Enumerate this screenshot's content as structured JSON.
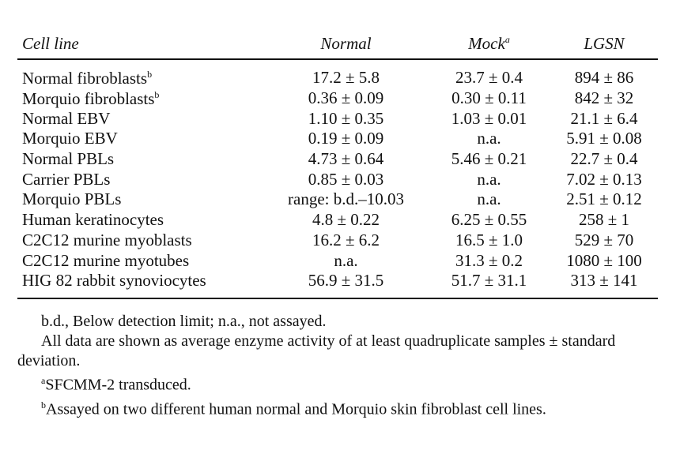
{
  "table": {
    "headers": {
      "cell_line": "Cell line",
      "normal": "Normal",
      "mock": "Mock",
      "mock_sup": "a",
      "lgsn": "LGSN"
    },
    "rows": [
      {
        "cell_line": "Normal fibroblasts",
        "sup": "b",
        "normal": "17.2 ± 5.8",
        "mock": "23.7 ± 0.4",
        "lgsn": "894 ± 86"
      },
      {
        "cell_line": "Morquio fibroblasts",
        "sup": "b",
        "normal": "0.36 ± 0.09",
        "mock": "0.30 ± 0.11",
        "lgsn": "842 ± 32"
      },
      {
        "cell_line": "Normal EBV",
        "sup": "",
        "normal": "1.10 ± 0.35",
        "mock": "1.03 ± 0.01",
        "lgsn": "21.1 ± 6.4"
      },
      {
        "cell_line": "Morquio EBV",
        "sup": "",
        "normal": "0.19 ± 0.09",
        "mock": "n.a.",
        "lgsn": "5.91 ± 0.08"
      },
      {
        "cell_line": "Normal PBLs",
        "sup": "",
        "normal": "4.73 ± 0.64",
        "mock": "5.46 ± 0.21",
        "lgsn": "22.7 ± 0.4"
      },
      {
        "cell_line": "Carrier PBLs",
        "sup": "",
        "normal": "0.85 ± 0.03",
        "mock": "n.a.",
        "lgsn": "7.02 ± 0.13"
      },
      {
        "cell_line": "Morquio PBLs",
        "sup": "",
        "normal": "range: b.d.–10.03",
        "mock": "n.a.",
        "lgsn": "2.51 ± 0.12"
      },
      {
        "cell_line": "Human keratinocytes",
        "sup": "",
        "normal": "4.8 ± 0.22",
        "mock": "6.25 ± 0.55",
        "lgsn": "258 ± 1"
      },
      {
        "cell_line": "C2C12 murine myoblasts",
        "sup": "",
        "normal": "16.2 ± 6.2",
        "mock": "16.5 ± 1.0",
        "lgsn": "529 ± 70"
      },
      {
        "cell_line": "C2C12 murine myotubes",
        "sup": "",
        "normal": "n.a.",
        "mock": "31.3 ± 0.2",
        "lgsn": "1080 ± 100"
      },
      {
        "cell_line": "HIG 82 rabbit synoviocytes",
        "sup": "",
        "normal": "56.9 ± 31.5",
        "mock": "51.7 ± 31.1",
        "lgsn": "313 ± 141"
      }
    ]
  },
  "footnotes": {
    "abbrev": "b.d., Below detection limit; n.a., not assayed.",
    "data_note": "All data are shown as average enzyme activity of at least quadruplicate samples ± standard deviation.",
    "note_a_marker": "a",
    "note_a": "SFCMM-2 transduced.",
    "note_b_marker": "b",
    "note_b": "Assayed on two different human normal and Morquio skin fibroblast cell lines."
  }
}
